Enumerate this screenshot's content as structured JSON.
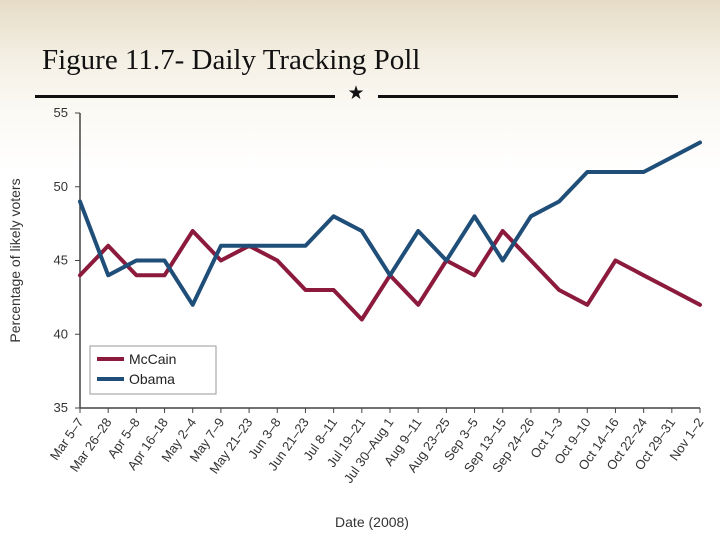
{
  "slide": {
    "title": "Figure 11.7- Daily Tracking Poll"
  },
  "icons": {
    "divider": "star-icon"
  },
  "colors": {
    "mccain": "#8b1a3c",
    "obama": "#1f4e79",
    "axis": "#444444"
  },
  "chart_data": {
    "type": "line",
    "title": "",
    "xlabel": "Date (2008)",
    "ylabel": "Percentage of likely voters",
    "ylim": [
      35,
      55
    ],
    "yticks": [
      35,
      40,
      45,
      50,
      55
    ],
    "grid": false,
    "legend_position": "bottom-left",
    "categories": [
      "Mar 5–7",
      "Mar 26–28",
      "Apr 5–8",
      "Apr 16–18",
      "May 2–4",
      "May 7–9",
      "May 21–23",
      "Jun 3–8",
      "Jun 21–23",
      "Jul 8–11",
      "Jul 19–21",
      "Jul 30–Aug 1",
      "Aug 9–11",
      "Aug 23–25",
      "Sep 3–5",
      "Sep 13–15",
      "Sep 24–26",
      "Oct 1–3",
      "Oct 9–10",
      "Oct 14–16",
      "Oct 22–24",
      "Oct 29–31",
      "Nov 1–2"
    ],
    "series": [
      {
        "name": "McCain",
        "color": "#8b1a3c",
        "values": [
          44,
          46,
          44,
          44,
          47,
          45,
          46,
          45,
          43,
          43,
          41,
          44,
          42,
          45,
          44,
          47,
          45,
          43,
          42,
          45,
          44,
          43,
          42
        ]
      },
      {
        "name": "Obama",
        "color": "#1f4e79",
        "values": [
          49,
          44,
          45,
          45,
          42,
          46,
          46,
          46,
          46,
          48,
          47,
          44,
          47,
          45,
          48,
          45,
          48,
          49,
          51,
          51,
          51,
          52,
          53
        ]
      }
    ]
  }
}
